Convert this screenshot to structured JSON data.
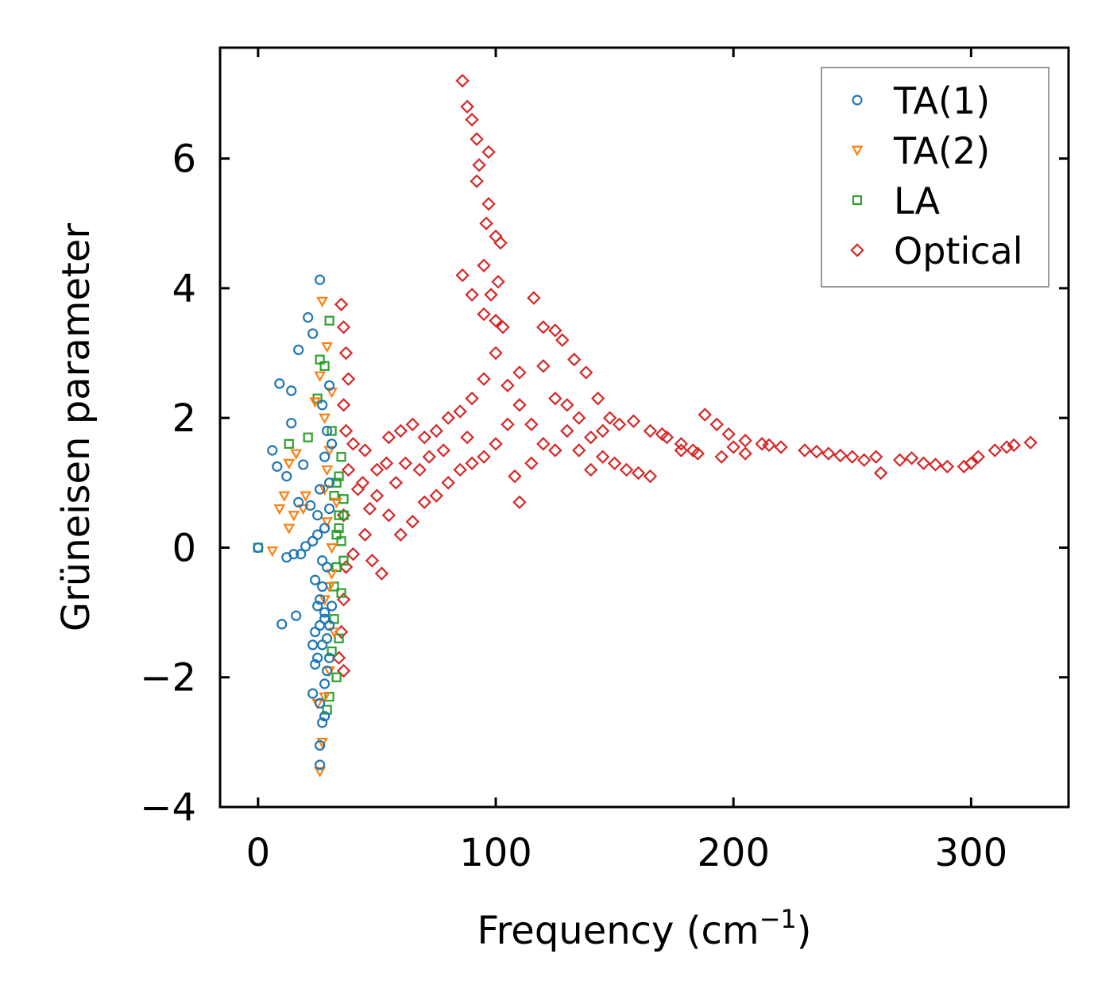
{
  "chart_data": {
    "type": "scatter",
    "title": "",
    "xlabel": "Frequency (cm",
    "xlabel_sup": "−1",
    "xlabel_tail": ")",
    "ylabel": "Grüneisen parameter",
    "xlim": [
      -16,
      341
    ],
    "ylim": [
      -4,
      7.71
    ],
    "xticks": [
      0,
      100,
      200,
      300
    ],
    "xtick_labels": [
      "0",
      "100",
      "200",
      "300"
    ],
    "yticks": [
      -4,
      -2,
      0,
      2,
      4,
      6
    ],
    "ytick_labels": [
      "−4",
      "−2",
      "0",
      "2",
      "4",
      "6"
    ],
    "grid": false,
    "legend_position": "top-right",
    "series": [
      {
        "name": "TA(1)",
        "marker": "circle",
        "color": "#1f77b4",
        "points": [
          [
            26,
            4.13
          ],
          [
            21,
            3.55
          ],
          [
            17,
            3.05
          ],
          [
            23,
            3.3
          ],
          [
            9,
            2.53
          ],
          [
            14,
            2.42
          ],
          [
            14,
            1.92
          ],
          [
            19,
            1.28
          ],
          [
            6,
            1.5
          ],
          [
            8,
            1.25
          ],
          [
            12,
            1.1
          ],
          [
            17,
            0.7
          ],
          [
            0,
            0
          ],
          [
            12,
            -0.15
          ],
          [
            15,
            -0.1
          ],
          [
            18,
            -0.1
          ],
          [
            23,
            0.1
          ],
          [
            20,
            0.02
          ],
          [
            25,
            0.5
          ],
          [
            26,
            0.9
          ],
          [
            28,
            1.4
          ],
          [
            29,
            1.8
          ],
          [
            30,
            2.5
          ],
          [
            27,
            2.2
          ],
          [
            28,
            0.3
          ],
          [
            24,
            -0.5
          ],
          [
            26,
            -0.8
          ],
          [
            28,
            -1.0
          ],
          [
            30,
            -1.2
          ],
          [
            27,
            -1.5
          ],
          [
            25,
            -1.7
          ],
          [
            29,
            -1.9
          ],
          [
            10,
            -1.18
          ],
          [
            16,
            -1.05
          ],
          [
            23,
            -2.25
          ],
          [
            26,
            -2.4
          ],
          [
            28,
            -2.6
          ],
          [
            27,
            -2.7
          ],
          [
            26,
            -3.05
          ],
          [
            26,
            -3.35
          ],
          [
            24,
            -1.3
          ],
          [
            29,
            -0.3
          ],
          [
            27,
            -0.2
          ],
          [
            30,
            0.6
          ],
          [
            23,
            -1.5
          ],
          [
            28,
            -1.1
          ],
          [
            26,
            -1.2
          ],
          [
            25,
            -0.9
          ],
          [
            29,
            -1.4
          ],
          [
            27,
            -0.6
          ],
          [
            30,
            -1.7
          ],
          [
            24,
            -1.8
          ],
          [
            28,
            -2.1
          ],
          [
            31,
            -0.9
          ],
          [
            25,
            0.2
          ],
          [
            22,
            0.65
          ],
          [
            30,
            1.0
          ],
          [
            31,
            1.6
          ]
        ]
      },
      {
        "name": "TA(2)",
        "marker": "triangle-down",
        "color": "#ff7f0e",
        "points": [
          [
            27,
            3.8
          ],
          [
            29,
            3.1
          ],
          [
            26,
            2.65
          ],
          [
            24,
            2.25
          ],
          [
            28,
            2.0
          ],
          [
            13,
            1.3
          ],
          [
            16,
            1.45
          ],
          [
            20,
            0.8
          ],
          [
            19,
            0.6
          ],
          [
            9,
            0.6
          ],
          [
            11,
            0.8
          ],
          [
            13,
            0.3
          ],
          [
            15,
            0.5
          ],
          [
            6,
            -0.05
          ],
          [
            28,
            0.9
          ],
          [
            30,
            1.5
          ],
          [
            29,
            0.4
          ],
          [
            31,
            -0.4
          ],
          [
            28,
            -0.8
          ],
          [
            32,
            -1.3
          ],
          [
            30,
            -1.9
          ],
          [
            28,
            -2.3
          ],
          [
            27,
            -3.0
          ],
          [
            26,
            -3.45
          ],
          [
            25,
            -2.4
          ],
          [
            31,
            0.0
          ],
          [
            33,
            0.7
          ],
          [
            30,
            -0.6
          ],
          [
            29,
            1.2
          ],
          [
            31,
            2.4
          ]
        ]
      },
      {
        "name": "LA",
        "marker": "square",
        "color": "#2ca02c",
        "points": [
          [
            0,
            0
          ],
          [
            30,
            3.5
          ],
          [
            26,
            2.9
          ],
          [
            28,
            2.8
          ],
          [
            25,
            2.3
          ],
          [
            13,
            1.6
          ],
          [
            21,
            1.7
          ],
          [
            36,
            0.75
          ],
          [
            33,
            1.0
          ],
          [
            34,
            0.5
          ],
          [
            35,
            0.1
          ],
          [
            33,
            -0.3
          ],
          [
            35,
            -0.7
          ],
          [
            32,
            -1.1
          ],
          [
            31,
            -1.6
          ],
          [
            33,
            -2.0
          ],
          [
            30,
            -2.3
          ],
          [
            29,
            -2.5
          ],
          [
            34,
            0.3
          ],
          [
            36,
            -0.2
          ],
          [
            32,
            0.8
          ],
          [
            35,
            1.4
          ],
          [
            31,
            1.8
          ],
          [
            34,
            -1.4
          ],
          [
            33,
            0.2
          ],
          [
            36,
            0.5
          ],
          [
            32,
            -0.6
          ],
          [
            34,
            1.1
          ]
        ]
      },
      {
        "name": "Optical",
        "marker": "diamond",
        "color": "#d62728",
        "points": [
          [
            86,
            7.2
          ],
          [
            88,
            6.8
          ],
          [
            90,
            6.6
          ],
          [
            92,
            6.3
          ],
          [
            93,
            5.9
          ],
          [
            92,
            5.65
          ],
          [
            97,
            6.1
          ],
          [
            97,
            5.3
          ],
          [
            96,
            5.0
          ],
          [
            100,
            4.8
          ],
          [
            102,
            4.7
          ],
          [
            95,
            4.35
          ],
          [
            101,
            4.1
          ],
          [
            86,
            4.2
          ],
          [
            90,
            3.9
          ],
          [
            95,
            3.6
          ],
          [
            100,
            3.5
          ],
          [
            103,
            3.4
          ],
          [
            98,
            3.9
          ],
          [
            116,
            3.85
          ],
          [
            120,
            3.4
          ],
          [
            125,
            3.35
          ],
          [
            128,
            3.2
          ],
          [
            133,
            2.9
          ],
          [
            138,
            2.7
          ],
          [
            143,
            2.3
          ],
          [
            148,
            2.0
          ],
          [
            152,
            1.9
          ],
          [
            158,
            1.95
          ],
          [
            165,
            1.8
          ],
          [
            172,
            1.7
          ],
          [
            178,
            1.6
          ],
          [
            183,
            1.5
          ],
          [
            188,
            2.05
          ],
          [
            193,
            1.9
          ],
          [
            198,
            1.75
          ],
          [
            205,
            1.65
          ],
          [
            212,
            1.6
          ],
          [
            220,
            1.55
          ],
          [
            230,
            1.5
          ],
          [
            240,
            1.45
          ],
          [
            250,
            1.4
          ],
          [
            260,
            1.4
          ],
          [
            270,
            1.35
          ],
          [
            280,
            1.3
          ],
          [
            290,
            1.25
          ],
          [
            297,
            1.25
          ],
          [
            303,
            1.4
          ],
          [
            310,
            1.5
          ],
          [
            318,
            1.58
          ],
          [
            325,
            1.62
          ],
          [
            195,
            1.4
          ],
          [
            205,
            1.45
          ],
          [
            178,
            1.5
          ],
          [
            262,
            1.15
          ],
          [
            255,
            1.35
          ],
          [
            35,
            3.75
          ],
          [
            36,
            3.4
          ],
          [
            37,
            3.0
          ],
          [
            38,
            2.6
          ],
          [
            36,
            2.2
          ],
          [
            37,
            1.8
          ],
          [
            38,
            1.2
          ],
          [
            36,
            0.5
          ],
          [
            37,
            -0.3
          ],
          [
            36,
            -0.8
          ],
          [
            35,
            -1.3
          ],
          [
            36,
            -1.9
          ],
          [
            34,
            -1.7
          ],
          [
            40,
            1.6
          ],
          [
            45,
            1.5
          ],
          [
            50,
            1.2
          ],
          [
            52,
            -0.4
          ],
          [
            48,
            -0.2
          ],
          [
            45,
            0.2
          ],
          [
            55,
            1.7
          ],
          [
            60,
            1.8
          ],
          [
            65,
            1.9
          ],
          [
            70,
            1.7
          ],
          [
            75,
            1.8
          ],
          [
            80,
            2.0
          ],
          [
            85,
            2.1
          ],
          [
            55,
            0.5
          ],
          [
            60,
            0.2
          ],
          [
            65,
            0.4
          ],
          [
            70,
            0.7
          ],
          [
            75,
            0.8
          ],
          [
            80,
            1.0
          ],
          [
            85,
            1.2
          ],
          [
            90,
            1.3
          ],
          [
            90,
            2.3
          ],
          [
            95,
            2.6
          ],
          [
            100,
            3.0
          ],
          [
            105,
            2.5
          ],
          [
            110,
            2.2
          ],
          [
            110,
            0.7
          ],
          [
            108,
            1.1
          ],
          [
            115,
            1.9
          ],
          [
            120,
            1.6
          ],
          [
            125,
            2.3
          ],
          [
            130,
            1.8
          ],
          [
            135,
            1.5
          ],
          [
            140,
            1.7
          ],
          [
            145,
            1.4
          ],
          [
            150,
            1.3
          ],
          [
            155,
            1.2
          ],
          [
            160,
            1.15
          ],
          [
            165,
            1.1
          ],
          [
            140,
            1.2
          ],
          [
            100,
            1.6
          ],
          [
            105,
            1.9
          ],
          [
            95,
            1.4
          ],
          [
            115,
            1.3
          ],
          [
            120,
            2.8
          ],
          [
            110,
            2.7
          ],
          [
            42,
            0.9
          ],
          [
            47,
            0.6
          ],
          [
            58,
            1.0
          ],
          [
            62,
            1.3
          ],
          [
            68,
            1.2
          ],
          [
            72,
            1.4
          ],
          [
            78,
            1.5
          ],
          [
            88,
            1.7
          ],
          [
            40,
            -0.1
          ],
          [
            44,
            1.0
          ],
          [
            50,
            0.8
          ],
          [
            54,
            1.3
          ],
          [
            125,
            1.5
          ],
          [
            130,
            2.2
          ],
          [
            135,
            2.0
          ],
          [
            145,
            1.8
          ],
          [
            170,
            1.75
          ],
          [
            185,
            1.45
          ],
          [
            200,
            1.55
          ],
          [
            215,
            1.58
          ],
          [
            235,
            1.48
          ],
          [
            245,
            1.42
          ],
          [
            275,
            1.38
          ],
          [
            285,
            1.28
          ],
          [
            300,
            1.3
          ],
          [
            315,
            1.55
          ]
        ]
      }
    ]
  }
}
